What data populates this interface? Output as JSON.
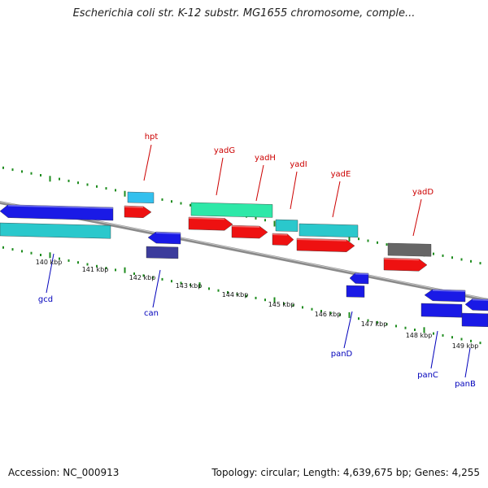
{
  "title": "Escherichia coli str. K-12 substr. MG1655 chromosome, comple...",
  "footer": {
    "accession": "Accession: NC_000913",
    "topology": "Topology: circular; Length: 4,639,675 bp; Genes: 4,255"
  },
  "colors": {
    "backbone": "#8a8a8a",
    "tick": "#1e8c1e",
    "label_top": "#cc0000",
    "label_bottom": "#0000bb",
    "blue": "#1a1ae6",
    "cyan": "#2ac8cc",
    "red": "#ee1111",
    "green_cyan": "#2ee8a8",
    "sky": "#33c0ee",
    "navy": "#3c3c9c",
    "gray": "#666666"
  },
  "ruler": {
    "labels": [
      "140 kbp",
      "141 kbp",
      "142 kbp",
      "143 kbp",
      "144 kbp",
      "145 kbp",
      "146 kbp",
      "147 kbp",
      "148 kbp",
      "149 kbp"
    ]
  },
  "genes": [
    {
      "name": "hpt",
      "strand": "top",
      "color": "sky"
    },
    {
      "name": "yadG",
      "strand": "top",
      "color": "green_cyan"
    },
    {
      "name": "yadH",
      "strand": "top",
      "color": "red"
    },
    {
      "name": "yadI",
      "strand": "top",
      "color": "red"
    },
    {
      "name": "yadE",
      "strand": "top",
      "color": "red"
    },
    {
      "name": "yadD",
      "strand": "top",
      "color": "gray"
    },
    {
      "name": "gcd",
      "strand": "bottom",
      "color": "blue"
    },
    {
      "name": "can",
      "strand": "bottom",
      "color": "blue"
    },
    {
      "name": "panD",
      "strand": "bottom",
      "color": "blue"
    },
    {
      "name": "panC",
      "strand": "bottom",
      "color": "blue"
    },
    {
      "name": "panB",
      "strand": "bottom",
      "color": "blue"
    }
  ]
}
